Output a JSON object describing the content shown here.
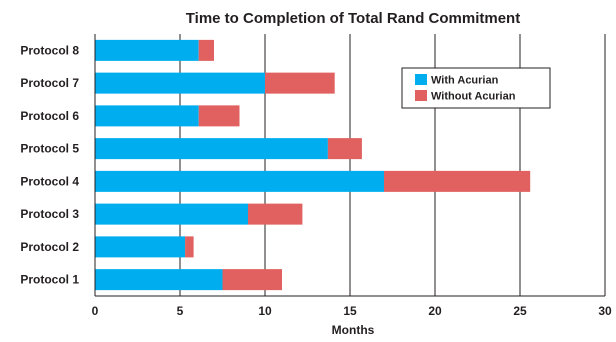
{
  "chart_data": {
    "type": "bar",
    "orientation": "horizontal",
    "stacked": true,
    "title": "Time to Completion of Total Rand Commitment",
    "xlabel": "Months",
    "ylabel": "",
    "xlim": [
      0,
      30
    ],
    "xticks": [
      "0",
      "5",
      "10",
      "15",
      "20",
      "25",
      "30"
    ],
    "grid": "vertical",
    "legend_position": "top-right",
    "categories": [
      "Protocol 8",
      "Protocol 7",
      "Protocol 6",
      "Protocol 5",
      "Protocol 4",
      "Protocol 3",
      "Protocol 2",
      "Protocol 1"
    ],
    "series": [
      {
        "name": "With Acurian",
        "color": "#00aeef",
        "values": [
          6.1,
          10.0,
          6.1,
          13.7,
          17.0,
          9.0,
          5.3,
          7.5
        ]
      },
      {
        "name": "Without Acurian",
        "color": "#e0615f",
        "values": [
          0.9,
          4.1,
          2.4,
          2.0,
          8.6,
          3.2,
          0.5,
          3.5
        ]
      }
    ]
  }
}
